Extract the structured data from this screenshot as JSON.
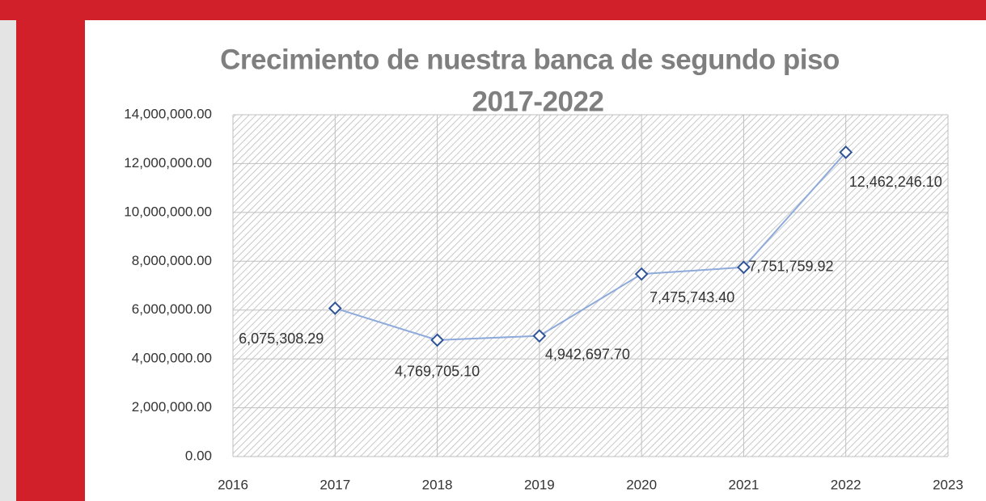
{
  "chart_data": {
    "type": "line",
    "title": "Crecimiento  de nuestra banca de segundo piso",
    "subtitle": "2017-2022",
    "x": [
      2017,
      2018,
      2019,
      2020,
      2021,
      2022
    ],
    "series": [
      {
        "color": "#8eaadb",
        "marker_color": "#2f5597",
        "values": [
          6075308.29,
          4769705.1,
          4942697.7,
          7475743.4,
          7751759.92,
          12462246.1
        ],
        "value_labels": [
          "6,075,308.29",
          "4,769,705.10",
          "4,942,697.70",
          "7,475,743.40",
          "7,751,759.92",
          "12,462,246.10"
        ]
      }
    ],
    "xlim": [
      2016,
      2023
    ],
    "xticks": [
      2016,
      2017,
      2018,
      2019,
      2020,
      2021,
      2022,
      2023
    ],
    "ylim": [
      0,
      14000000
    ],
    "yticks": [
      {
        "value": 0,
        "label": "0.00"
      },
      {
        "value": 2000000,
        "label": "2,000,000.00"
      },
      {
        "value": 4000000,
        "label": "4,000,000.00"
      },
      {
        "value": 6000000,
        "label": "6,000,000.00"
      },
      {
        "value": 8000000,
        "label": "8,000,000.00"
      },
      {
        "value": 10000000,
        "label": "10,000,000.00"
      },
      {
        "value": 12000000,
        "label": "12,000,000.00"
      },
      {
        "value": 14000000,
        "label": "14,000,000.00"
      }
    ],
    "grid": true
  }
}
